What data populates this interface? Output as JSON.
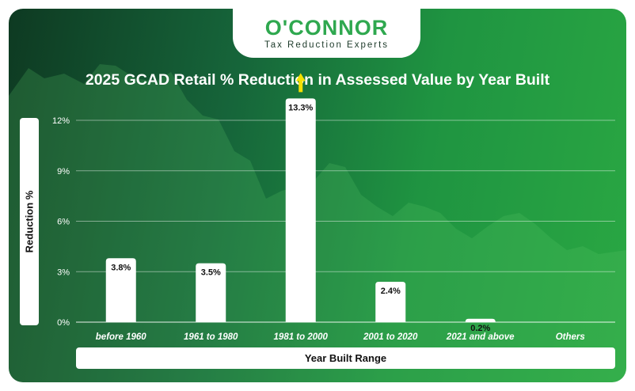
{
  "brand": {
    "name": "O'CONNOR",
    "tagline": "Tax Reduction Experts"
  },
  "colors": {
    "accent": "#2fa84f",
    "background_dark": "#0e3a22",
    "background_light": "#2aa843",
    "bar": "#ffffff",
    "highlight_arrow": "#f5e000"
  },
  "chart_data": {
    "type": "bar",
    "title": "2025 GCAD Retail % Reduction in Assessed Value by Year Built",
    "xlabel": "Year Built Range",
    "ylabel": "Reduction %",
    "categories": [
      "before 1960",
      "1961 to 1980",
      "1981 to 2000",
      "2001 to 2020",
      "2021 and above",
      "Others"
    ],
    "values": [
      3.8,
      3.5,
      13.3,
      2.4,
      0.2,
      null
    ],
    "value_labels": [
      "3.8%",
      "3.5%",
      "13.3%",
      "2.4%",
      "0.2%",
      ""
    ],
    "y_ticks": [
      "0%",
      "3%",
      "6%",
      "9%",
      "12%"
    ],
    "y_tick_values": [
      0,
      3,
      6,
      9,
      12
    ],
    "ylim": [
      0,
      12
    ],
    "grid": true,
    "legend": "none",
    "highlight_index": 2,
    "highlight_icon": "up-arrow-icon"
  }
}
